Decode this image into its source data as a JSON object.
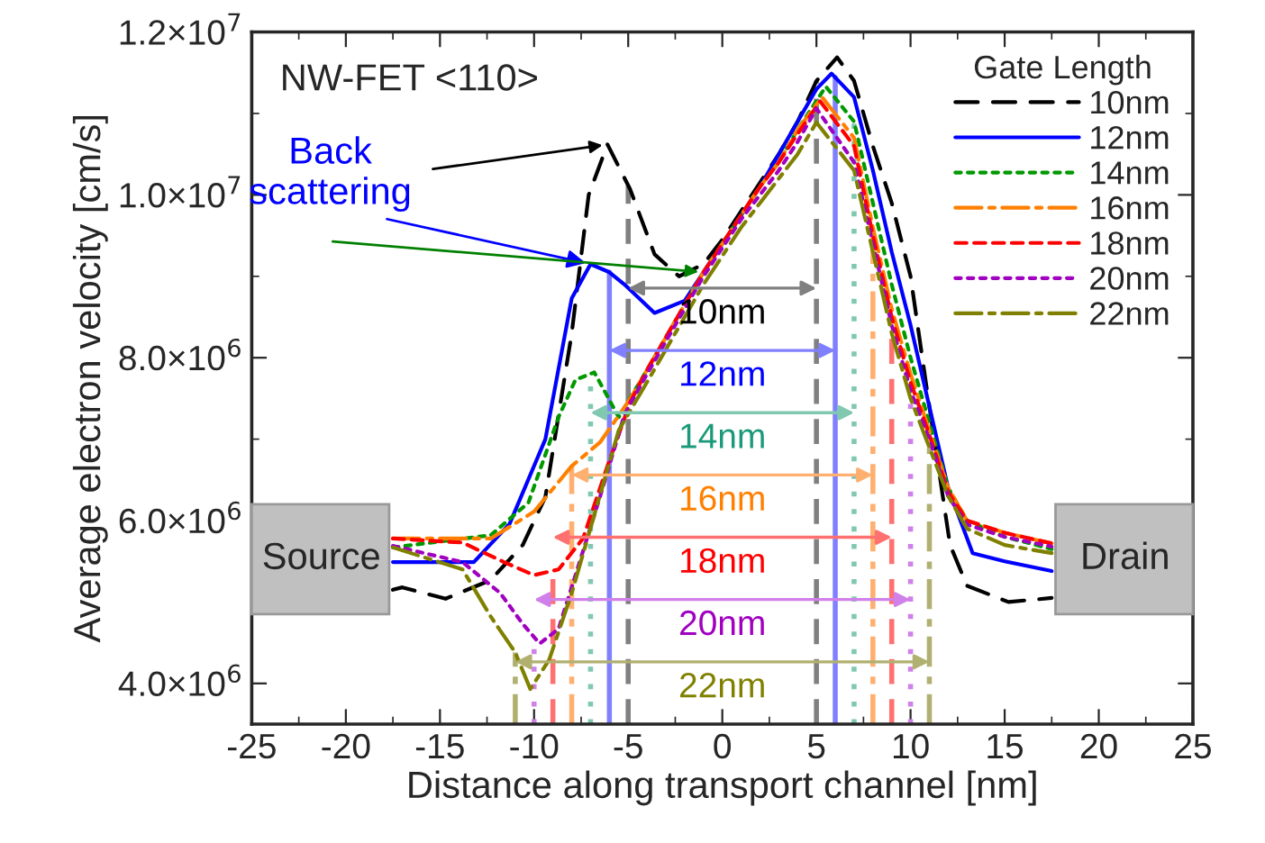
{
  "chart_data": {
    "type": "line",
    "xlabel": "Distance along transport channel [nm]",
    "ylabel": "Average electron velocity [cm/s]",
    "legend_title": "Gate Length",
    "legend": "top right",
    "grid": false,
    "xlim": [
      -25,
      25
    ],
    "xticks": [
      -25,
      -20,
      -15,
      -10,
      -5,
      0,
      5,
      10,
      15,
      20,
      25
    ],
    "ylim": [
      3500000,
      12000000
    ],
    "yticks": [
      {
        "value": 4000000,
        "label": "4.0×10$^{6}$"
      },
      {
        "value": 6000000,
        "label": "6.0×10$^{6}$"
      },
      {
        "value": 8000000,
        "label": "8.0×10$^{6}$"
      },
      {
        "value": 10000000,
        "label": "1.0×10$^{7}$"
      },
      {
        "value": 12000000,
        "label": "1.2×10$^{7}$"
      }
    ],
    "series": [
      {
        "name": "10nm",
        "color": "#000000",
        "line_style": "dashed",
        "x": [
          -17.5,
          -17,
          -14.7,
          -12.3,
          -10.6,
          -9.4,
          -8,
          -7.1,
          -6.1,
          -4.9,
          -3.6,
          -2.3,
          -1,
          0,
          1,
          2,
          3,
          4,
          5,
          6.1,
          7,
          8,
          9,
          10,
          11,
          12.1,
          13,
          15.2,
          17.5
        ],
        "values": [
          5150000,
          5180000,
          5040000,
          5270000,
          5700000,
          6290000,
          8300000,
          10000000,
          10620000,
          10070000,
          9270000,
          9000000,
          9150000,
          9450000,
          9800000,
          10150000,
          10500000,
          10900000,
          11400000,
          11690000,
          11400000,
          10600000,
          9900000,
          9000000,
          7400000,
          5700000,
          5200000,
          5000000,
          5050000
        ]
      },
      {
        "name": "12nm",
        "color": "#0000ff",
        "line_style": "solid",
        "x": [
          -17.5,
          -13.2,
          -11.3,
          -9.4,
          -8,
          -7,
          -6,
          -5.2,
          -3.6,
          -2,
          -1,
          0,
          1,
          2,
          3,
          4,
          5,
          5.8,
          7,
          8,
          9,
          10,
          11,
          12,
          13.3,
          15,
          17.5
        ],
        "values": [
          5490000,
          5490000,
          5960000,
          7000000,
          8730000,
          9150000,
          9050000,
          8900000,
          8550000,
          8700000,
          9050000,
          9400000,
          9750000,
          10100000,
          10500000,
          10900000,
          11300000,
          11490000,
          11200000,
          10300000,
          9300000,
          8400000,
          7400000,
          6400000,
          5600000,
          5500000,
          5380000
        ]
      },
      {
        "name": "14nm",
        "color": "#009900",
        "line_style": "dotted",
        "x": [
          -17.5,
          -12.3,
          -10.3,
          -8.7,
          -7.8,
          -6.8,
          -5.5,
          -4,
          -3,
          -2,
          -1,
          0,
          1,
          2,
          3,
          4,
          5.5,
          7,
          8,
          9,
          10,
          11,
          12,
          13,
          15,
          17.5
        ],
        "values": [
          5670000,
          5820000,
          6220000,
          7270000,
          7730000,
          7820000,
          7270000,
          7850000,
          8250000,
          8650000,
          9050000,
          9400000,
          9750000,
          10100000,
          10400000,
          10800000,
          11330000,
          10900000,
          9900000,
          8900000,
          8000000,
          7200000,
          6400000,
          6000000,
          5800000,
          5650000
        ]
      },
      {
        "name": "16nm",
        "color": "#ff8000",
        "line_style": "dashdot",
        "x": [
          -17.5,
          -12.3,
          -10,
          -8,
          -6.5,
          -4.9,
          -4,
          -3,
          -2,
          -1,
          0,
          1,
          2,
          3,
          4,
          5.3,
          7,
          8,
          9,
          10,
          11,
          12,
          13,
          15,
          17.5
        ],
        "values": [
          5780000,
          5780000,
          6110000,
          6670000,
          6960000,
          7490000,
          7850000,
          8250000,
          8650000,
          9050000,
          9400000,
          9750000,
          10100000,
          10400000,
          10800000,
          11200000,
          10700000,
          9600000,
          8600000,
          7800000,
          7100000,
          6400000,
          6000000,
          5850000,
          5720000
        ]
      },
      {
        "name": "18nm",
        "color": "#ff0000",
        "line_style": "dashed",
        "x": [
          -17.5,
          -13.8,
          -11.6,
          -10,
          -8.7,
          -7.4,
          -6.1,
          -4.9,
          -4,
          -3,
          -2,
          -1,
          0,
          1,
          2,
          3,
          4,
          5.2,
          7,
          8,
          9,
          10,
          11,
          12,
          13,
          15,
          17.5
        ],
        "values": [
          5780000,
          5730000,
          5490000,
          5330000,
          5400000,
          5780000,
          6670000,
          7450000,
          7850000,
          8250000,
          8650000,
          9050000,
          9400000,
          9750000,
          10100000,
          10400000,
          10750000,
          11150000,
          10600000,
          9500000,
          8500000,
          7700000,
          7050000,
          6350000,
          6000000,
          5850000,
          5720000
        ]
      },
      {
        "name": "20nm",
        "color": "#a000c0",
        "line_style": "dotted",
        "x": [
          -17.5,
          -13.8,
          -11.8,
          -10.6,
          -9.7,
          -8.7,
          -7.8,
          -6.5,
          -5.2,
          -4,
          -3,
          -2,
          -1,
          0,
          1,
          2,
          3,
          4,
          5,
          7,
          8,
          9,
          10,
          11,
          12,
          13,
          15,
          17.5
        ],
        "values": [
          5690000,
          5490000,
          5110000,
          4730000,
          4490000,
          4670000,
          5330000,
          6290000,
          7300000,
          7800000,
          8200000,
          8600000,
          9000000,
          9350000,
          9700000,
          10000000,
          10300000,
          10650000,
          11060000,
          10400000,
          9400000,
          8400000,
          7600000,
          7000000,
          6300000,
          5950000,
          5800000,
          5680000
        ]
      },
      {
        "name": "22nm",
        "color": "#808000",
        "line_style": "dashdot",
        "x": [
          -17.5,
          -13.8,
          -12.3,
          -11,
          -10.2,
          -9.2,
          -8,
          -6.8,
          -5.5,
          -4,
          -3,
          -2,
          -1,
          0,
          1,
          2,
          3,
          4,
          5,
          7,
          8,
          9,
          10,
          11,
          12,
          13,
          15,
          17.5
        ],
        "values": [
          5670000,
          5400000,
          4820000,
          4380000,
          3930000,
          4290000,
          5110000,
          6070000,
          7110000,
          7700000,
          8100000,
          8500000,
          8900000,
          9250000,
          9600000,
          9900000,
          10200000,
          10500000,
          10890000,
          10300000,
          9300000,
          8300000,
          7500000,
          6900000,
          6300000,
          5900000,
          5700000,
          5600000
        ]
      }
    ],
    "ref_lines": [
      {
        "axis": "x",
        "value": -5,
        "color": "#808080",
        "line_style": "dashed"
      },
      {
        "axis": "x",
        "value": 5,
        "color": "#808080",
        "line_style": "dashed"
      },
      {
        "axis": "x",
        "value": -6,
        "color": "#8080ff",
        "line_style": "solid"
      },
      {
        "axis": "x",
        "value": 6,
        "color": "#8080ff",
        "line_style": "solid"
      },
      {
        "axis": "x",
        "value": -7,
        "color": "#80c8b0",
        "line_style": "dotted"
      },
      {
        "axis": "x",
        "value": 7,
        "color": "#80c8b0",
        "line_style": "dotted"
      },
      {
        "axis": "x",
        "value": -8,
        "color": "#ffb070",
        "line_style": "dashdot"
      },
      {
        "axis": "x",
        "value": 8,
        "color": "#ffb070",
        "line_style": "dashdot"
      },
      {
        "axis": "x",
        "value": -9,
        "color": "#ff7070",
        "line_style": "dashed"
      },
      {
        "axis": "x",
        "value": 9,
        "color": "#ff7070",
        "line_style": "dashed"
      },
      {
        "axis": "x",
        "value": -10,
        "color": "#d080e8",
        "line_style": "dotted"
      },
      {
        "axis": "x",
        "value": 10,
        "color": "#d080e8",
        "line_style": "dotted"
      },
      {
        "axis": "x",
        "value": -11,
        "color": "#b0b070",
        "line_style": "dashdot"
      },
      {
        "axis": "x",
        "value": 11,
        "color": "#b0b070",
        "line_style": "dashdot"
      }
    ],
    "annotations": [
      "NW-FET <110>",
      {
        "text": "Back\nscattering",
        "x": -7,
        "y": 9150000
      },
      "Source",
      "Drain",
      "10nm",
      "12nm",
      "14nm",
      "16nm",
      "18nm",
      "20nm",
      "22nm"
    ]
  }
}
